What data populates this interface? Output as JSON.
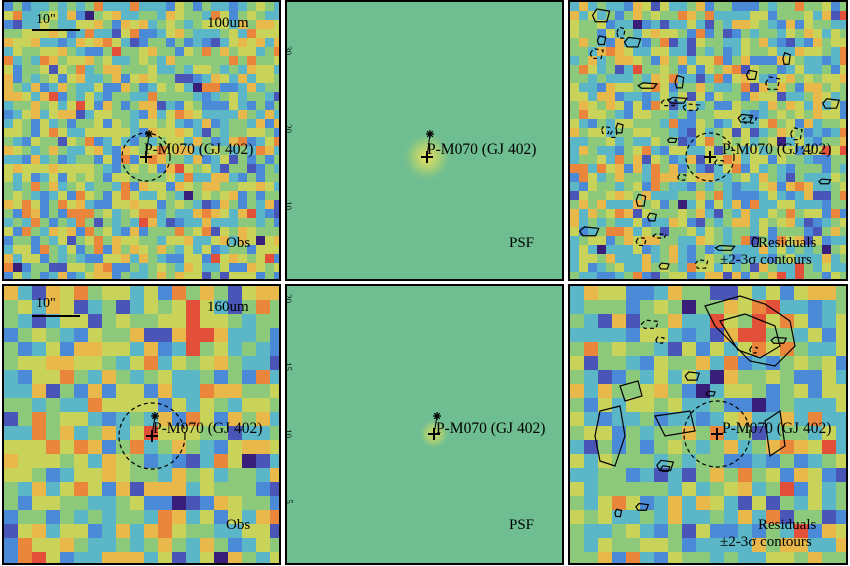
{
  "rows": [
    {
      "band_label": "100um",
      "scale_label": "10\"",
      "obs_label": "Obs",
      "psf_label": "PSF",
      "residual_label_1": "Residuals",
      "residual_label_2": "±2-3σ contours",
      "source_label": "P-M070 (GJ 402)",
      "psf_axis_ticks": [
        "30",
        "20",
        "10"
      ]
    },
    {
      "band_label": "160um",
      "scale_label": "10\"",
      "obs_label": "Obs",
      "psf_label": "PSF",
      "residual_label_1": "Residuals",
      "residual_label_2": "±2-3σ contours",
      "source_label": "P-M070 (GJ 402)",
      "psf_axis_ticks": [
        "20",
        "15",
        "10",
        "5"
      ]
    }
  ],
  "colormap": [
    "#3a1f7a",
    "#4a55b8",
    "#4a8ad6",
    "#5bb6c8",
    "#8cc97a",
    "#c9d35a",
    "#e8b84a",
    "#e9863c",
    "#e2503a"
  ],
  "psf_background": "#6fbe92"
}
